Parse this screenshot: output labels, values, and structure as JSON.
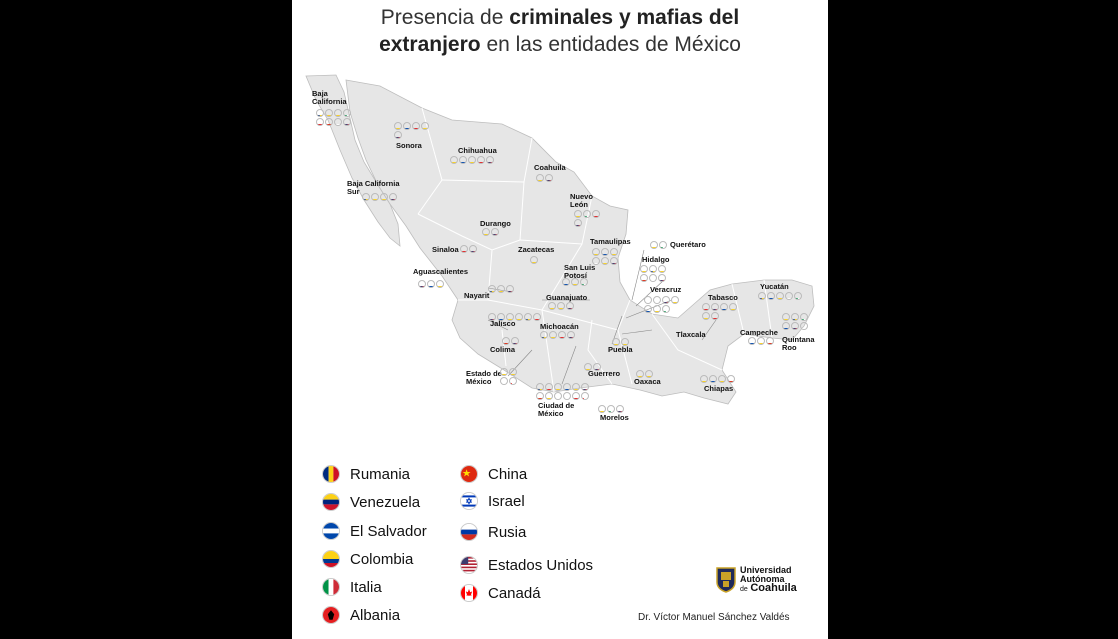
{
  "title": {
    "prefix": "Presencia de ",
    "bold1": "criminales y mafias del",
    "bold2": "extranjero",
    "suffix": " en las entidades de México"
  },
  "countries": {
    "rumania": {
      "label": "Rumania",
      "icon": "romania-flag-icon",
      "colors": [
        "#002b7f",
        "#fcd116",
        "#ce1126"
      ],
      "style": "v3"
    },
    "venezuela": {
      "label": "Venezuela",
      "icon": "venezuela-flag-icon",
      "colors": [
        "#fcd116",
        "#00247d",
        "#cf142b"
      ],
      "style": "h3"
    },
    "salvador": {
      "label": "El Salvador",
      "icon": "el-salvador-flag-icon",
      "colors": [
        "#0047ab",
        "#ffffff",
        "#0047ab"
      ],
      "style": "h3"
    },
    "colombia": {
      "label": "Colombia",
      "icon": "colombia-flag-icon",
      "colors": [
        "#fcd116",
        "#003893",
        "#ce1126"
      ],
      "style": "col"
    },
    "italia": {
      "label": "Italia",
      "icon": "italy-flag-icon",
      "colors": [
        "#009246",
        "#ffffff",
        "#ce2b37"
      ],
      "style": "v3"
    },
    "albania": {
      "label": "Albania",
      "icon": "albania-flag-icon",
      "colors": [
        "#e41e20",
        "#000000"
      ],
      "style": "center"
    },
    "china": {
      "label": "China",
      "icon": "china-flag-icon",
      "colors": [
        "#de2910",
        "#ffde00"
      ],
      "style": "star"
    },
    "israel": {
      "label": "Israel",
      "icon": "israel-flag-icon",
      "colors": [
        "#ffffff",
        "#0038b8"
      ],
      "style": "israel"
    },
    "rusia": {
      "label": "Rusia",
      "icon": "russia-flag-icon",
      "colors": [
        "#ffffff",
        "#0039a6",
        "#d52b1e"
      ],
      "style": "h3"
    },
    "usa": {
      "label": "Estados Unidos",
      "icon": "usa-flag-icon",
      "colors": [
        "#b22234",
        "#ffffff",
        "#3c3b6e"
      ],
      "style": "usa"
    },
    "canada": {
      "label": "Canadá",
      "icon": "canada-flag-icon",
      "colors": [
        "#ff0000",
        "#ffffff"
      ],
      "style": "canada"
    }
  },
  "legend": {
    "left": [
      "rumania",
      "venezuela",
      "salvador",
      "colombia",
      "italia",
      "albania"
    ],
    "right": [
      "china",
      "israel",
      "rusia",
      "usa",
      "canada"
    ]
  },
  "states": [
    {
      "name": "Baja\nCalifornia",
      "flags": [
        "rumania",
        "venezuela",
        "colombia",
        "italia",
        "albania",
        "china",
        "rusia",
        "usa"
      ]
    },
    {
      "name": "Sonora",
      "flags": [
        "colombia",
        "salvador",
        "albania",
        "venezuela",
        "usa"
      ]
    },
    {
      "name": "Chihuahua",
      "flags": [
        "venezuela",
        "salvador",
        "colombia",
        "albania",
        "usa"
      ]
    },
    {
      "name": "Coahuila",
      "flags": [
        "colombia",
        "usa"
      ]
    },
    {
      "name": "Baja California\nSur",
      "flags": [
        "rumania",
        "colombia",
        "venezuela",
        "usa"
      ]
    },
    {
      "name": "Nuevo\nLeón",
      "flags": [
        "colombia",
        "italia",
        "albania",
        "usa"
      ]
    },
    {
      "name": "Durango",
      "flags": [
        "colombia",
        "usa"
      ]
    },
    {
      "name": "Sinaloa",
      "flags": [
        "albania",
        "usa"
      ]
    },
    {
      "name": "Zacatecas",
      "flags": [
        "colombia"
      ]
    },
    {
      "name": "Tamaulipas",
      "flags": [
        "venezuela",
        "salvador",
        "colombia",
        "israel",
        "venezuela",
        "usa"
      ]
    },
    {
      "name": "Querétaro",
      "flags": [
        "colombia",
        "italia"
      ]
    },
    {
      "name": "Hidalgo",
      "flags": [
        "venezuela",
        "rumania",
        "colombia",
        "china",
        "rusia",
        "usa"
      ]
    },
    {
      "name": "Aguascalientes",
      "flags": [
        "usa",
        "salvador",
        "colombia"
      ]
    },
    {
      "name": "San Luis\nPotosí",
      "flags": [
        "salvador",
        "colombia",
        "italia"
      ]
    },
    {
      "name": "Nayarit",
      "flags": [
        "rumania",
        "colombia",
        "usa"
      ]
    },
    {
      "name": "Guanajuato",
      "flags": [
        "venezuela",
        "colombia",
        "usa"
      ]
    },
    {
      "name": "Veracruz",
      "flags": [
        "israel",
        "rusia",
        "usa",
        "venezuela",
        "salvador",
        "colombia",
        "italia"
      ]
    },
    {
      "name": "Jalisco",
      "flags": [
        "usa",
        "salvador",
        "colombia",
        "venezuela",
        "rumania",
        "albania"
      ]
    },
    {
      "name": "Tabasco",
      "flags": [
        "albania",
        "usa",
        "salvador",
        "colombia",
        "venezuela",
        "albania"
      ]
    },
    {
      "name": "Yucatán",
      "flags": [
        "rumania",
        "salvador",
        "colombia",
        "rusia",
        "italia"
      ]
    },
    {
      "name": "Quintana\nRoo",
      "flags": [
        "venezuela",
        "rumania",
        "italia",
        "salvador",
        "usa",
        "rusia"
      ]
    },
    {
      "name": "Campeche",
      "flags": [
        "salvador",
        "colombia",
        "china"
      ]
    },
    {
      "name": "Michoacán",
      "flags": [
        "rumania",
        "colombia",
        "albania",
        "usa"
      ]
    },
    {
      "name": "Tlaxcala",
      "flags": []
    },
    {
      "name": "Colima",
      "flags": [
        "china",
        "usa"
      ]
    },
    {
      "name": "Puebla",
      "flags": [
        "colombia",
        "venezuela"
      ]
    },
    {
      "name": "Estado de\nMéxico",
      "flags": [
        "colombia",
        "venezuela",
        "rusia",
        "canada"
      ]
    },
    {
      "name": "Guerrero",
      "flags": [
        "colombia",
        "usa"
      ]
    },
    {
      "name": "Oaxaca",
      "flags": [
        "colombia",
        "venezuela"
      ]
    },
    {
      "name": "Chiapas",
      "flags": [
        "venezuela",
        "salvador",
        "colombia",
        "china"
      ]
    },
    {
      "name": "Ciudad de\nMéxico",
      "flags": [
        "rumania",
        "albania",
        "venezuela",
        "salvador",
        "colombia",
        "usa",
        "china",
        "colombia",
        "rusia",
        "israel",
        "albania",
        "canada"
      ]
    },
    {
      "name": "Morelos",
      "flags": [
        "colombia",
        "italia",
        "usa"
      ]
    }
  ],
  "logo": {
    "line1": "Universidad",
    "line2": "Autónoma",
    "line3": "de",
    "line4": "Coahuila"
  },
  "credit": "Dr. Víctor Manuel Sánchez Valdés"
}
